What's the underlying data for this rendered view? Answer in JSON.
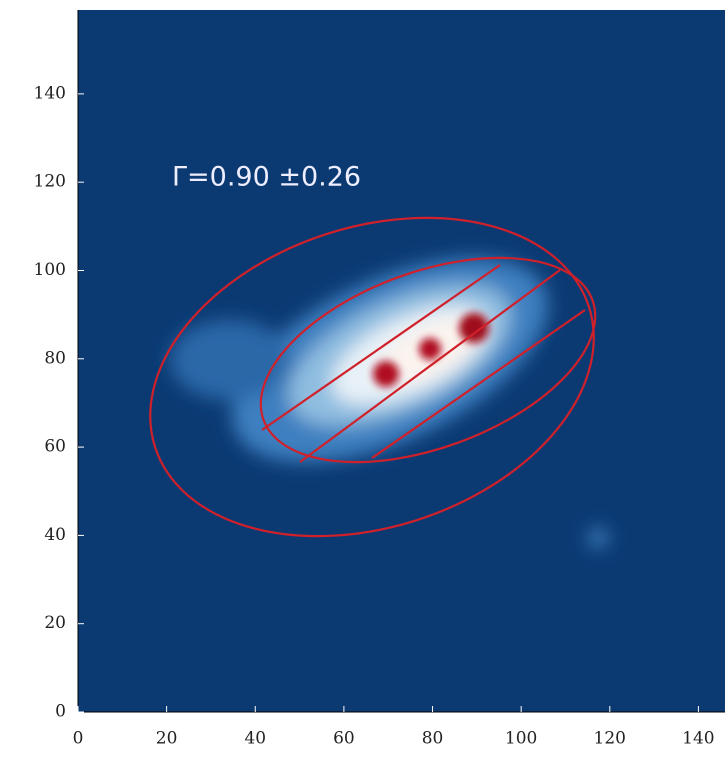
{
  "chart_data": {
    "type": "image",
    "annotation": "Γ=0.90 ±0.26",
    "xlim": [
      0,
      146
    ],
    "ylim": [
      0,
      159
    ],
    "xticks": [
      0,
      20,
      40,
      60,
      80,
      100,
      120,
      140
    ],
    "yticks": [
      0,
      20,
      40,
      60,
      80,
      100,
      120,
      140
    ],
    "background": "#0b3a73",
    "contour_color": "#d0202a"
  }
}
